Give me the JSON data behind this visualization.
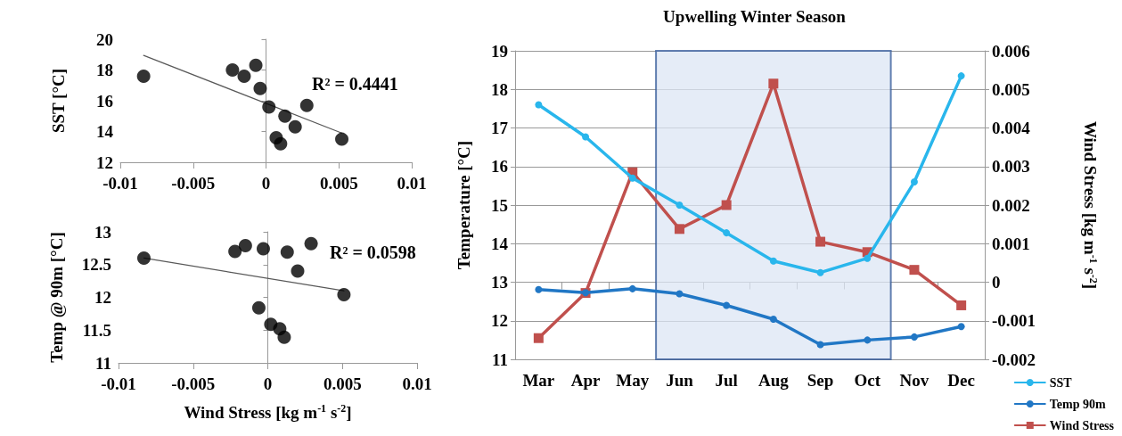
{
  "chart_data": [
    {
      "type": "scatter",
      "ylabel": "SST [°C]",
      "xlim": [
        -0.01,
        0.01
      ],
      "xticks": [
        -0.01,
        -0.005,
        0,
        0.005,
        0.01
      ],
      "ylim": [
        12,
        20
      ],
      "yticks": [
        12,
        14,
        16,
        18,
        20
      ],
      "marker": "circle",
      "annotations": [
        "R² = 0.4441"
      ],
      "series": [
        {
          "color": "#000000",
          "x": [
            -0.0084,
            -0.0023,
            -0.0015,
            -0.0007,
            -0.0004,
            0.0002,
            0.0013,
            0.0007,
            0.001,
            0.002,
            0.0028,
            0.0052
          ],
          "values": [
            17.6,
            18.0,
            17.6,
            18.3,
            16.8,
            15.6,
            15.0,
            13.6,
            13.2,
            14.3,
            15.7,
            13.5
          ]
        },
        {
          "type": "line",
          "color": "#595959",
          "marker": "none",
          "x": [
            -0.0084,
            0.0052
          ],
          "values": [
            18.95,
            13.9
          ]
        }
      ]
    },
    {
      "type": "scatter",
      "ylabel": "Temp @ 90m [°C]",
      "xlabel": "Wind Stress [kg m$^{-1}$ s$^{-2}$]",
      "xlim": [
        -0.01,
        0.01
      ],
      "xticks": [
        -0.01,
        -0.005,
        0,
        0.005,
        0.01
      ],
      "ylim": [
        11,
        13
      ],
      "yticks": [
        11,
        11.5,
        12,
        12.5,
        13
      ],
      "marker": "circle",
      "annotations": [
        "R² = 0.0598"
      ],
      "series": [
        {
          "color": "#000000",
          "x": [
            -0.0083,
            -0.0022,
            -0.0015,
            -0.0003,
            0.0013,
            0.0029,
            0.002,
            0.0051,
            -0.0006,
            0.0002,
            0.0008,
            0.0011
          ],
          "values": [
            12.6,
            12.7,
            12.79,
            12.74,
            12.69,
            12.82,
            12.4,
            12.04,
            11.84,
            11.59,
            11.52,
            11.39
          ]
        },
        {
          "type": "line",
          "color": "#595959",
          "marker": "none",
          "x": [
            -0.0083,
            0.0051
          ],
          "values": [
            12.6,
            12.1
          ]
        }
      ]
    },
    {
      "type": "line",
      "title": "Upwelling Winter Season",
      "ylabel": "Temperature [°C]",
      "y2label": "Wind Stress [kg m$^{-1}$ s$^{-2}$]",
      "categories": [
        "Mar",
        "Apr",
        "May",
        "Jun",
        "Jul",
        "Aug",
        "Sep",
        "Oct",
        "Nov",
        "Dec"
      ],
      "ylim": [
        11,
        19
      ],
      "yticks": [
        11,
        12,
        13,
        14,
        15,
        16,
        17,
        18,
        19
      ],
      "y2lim": [
        -0.002,
        0.006
      ],
      "y2ticks": [
        -0.002,
        -0.001,
        0,
        0.001,
        0.002,
        0.003,
        0.004,
        0.005,
        0.006
      ],
      "grid": "y",
      "legend": "bottom right",
      "line_style": "solid",
      "bands": [
        {
          "axis": "x",
          "from": "Jun",
          "to": "Oct",
          "color": "#dce6f4"
        }
      ],
      "series": [
        {
          "name": "SST",
          "color": "#29b6ec",
          "marker": "circle",
          "values": [
            17.6,
            16.77,
            15.7,
            15.0,
            14.28,
            13.55,
            13.25,
            13.62,
            15.6,
            18.35
          ]
        },
        {
          "name": "Temp 90m",
          "color": "#2177c5",
          "marker": "circle",
          "values": [
            12.81,
            12.73,
            12.83,
            12.7,
            12.4,
            12.04,
            11.38,
            11.5,
            11.58,
            11.85
          ]
        },
        {
          "name": "Wind Stress",
          "color": "#c0504d",
          "marker": "square",
          "axis": "y2",
          "values": [
            -0.00145,
            -0.00028,
            0.00285,
            0.00138,
            0.002,
            0.00515,
            0.00105,
            0.00078,
            0.00032,
            -0.0006
          ]
        }
      ]
    }
  ]
}
